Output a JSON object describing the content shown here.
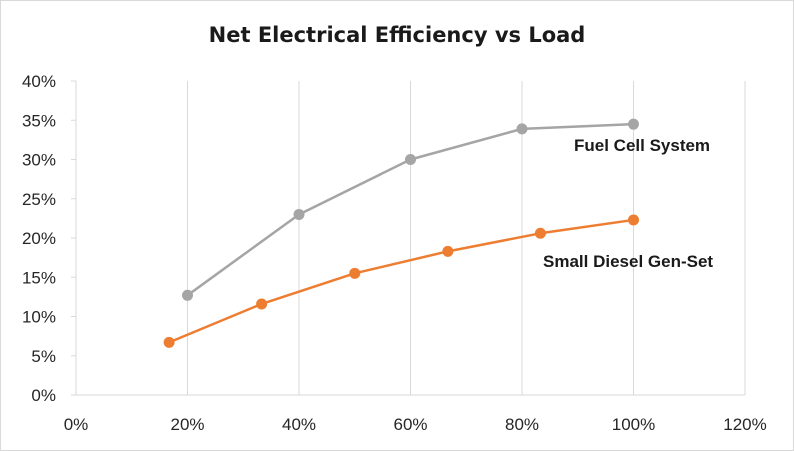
{
  "chart_data": {
    "type": "line",
    "title": "Net Electrical  Efficiency vs Load",
    "xlabel": "",
    "ylabel": "",
    "xlim": [
      0,
      120
    ],
    "ylim": [
      0,
      40
    ],
    "x_ticks": [
      "0%",
      "20%",
      "40%",
      "60%",
      "80%",
      "100%",
      "120%"
    ],
    "y_ticks": [
      "0%",
      "5%",
      "10%",
      "15%",
      "20%",
      "25%",
      "30%",
      "35%",
      "40%"
    ],
    "grid": "vertical",
    "legend": "none",
    "series": [
      {
        "name": "Fuel Cell System",
        "color": "#a5a5a5",
        "x": [
          20,
          40,
          60,
          80,
          100
        ],
        "y": [
          12.7,
          23.0,
          30.0,
          33.9,
          34.5
        ]
      },
      {
        "name": "Small Diesel Gen-Set",
        "color": "#ed7d31",
        "x": [
          16.7,
          33.3,
          50,
          66.7,
          83.3,
          100
        ],
        "y": [
          6.7,
          11.6,
          15.5,
          18.3,
          20.6,
          22.3
        ]
      }
    ]
  }
}
